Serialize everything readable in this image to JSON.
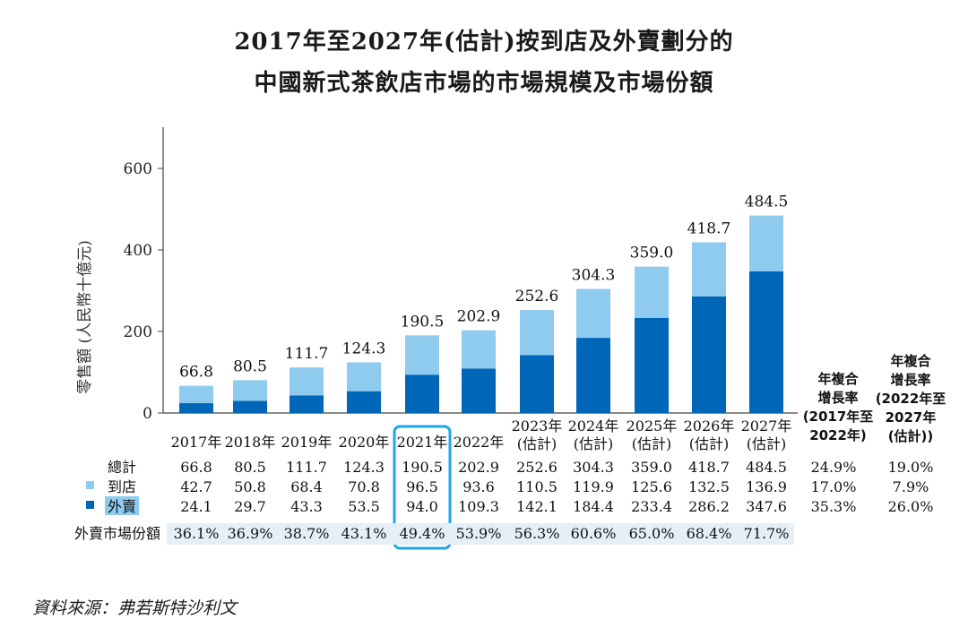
{
  "title_line1": "2017年至2027年(估計)按到店及外賣劃分的",
  "title_line2": "中國新式茶飲店市場的市場規模及市場份額",
  "source": "資料來源：弗若斯特沙利文",
  "colors": {
    "dine_in": "#8ecbef",
    "delivery": "#0067b8",
    "share_bg": "#e4eff7",
    "highlight": "#1aa9e6"
  },
  "chart_data": {
    "type": "bar",
    "stacked": true,
    "ylabel": "零售額 (人民幣十億元)",
    "ylim": [
      0,
      700
    ],
    "yticks": [
      0,
      200,
      400,
      600
    ],
    "categories": [
      [
        "2017年"
      ],
      [
        "2018年"
      ],
      [
        "2019年"
      ],
      [
        "2020年"
      ],
      [
        "2021年"
      ],
      [
        "2022年"
      ],
      [
        "2023年",
        "(估計)"
      ],
      [
        "2024年",
        "(估計)"
      ],
      [
        "2025年",
        "(估計)"
      ],
      [
        "2026年",
        "(估計)"
      ],
      [
        "2027年",
        "(估計)"
      ]
    ],
    "highlight_index": 4,
    "series": [
      {
        "name": "外賣",
        "values": [
          24.1,
          29.7,
          43.3,
          53.5,
          94.0,
          109.3,
          142.1,
          184.4,
          233.4,
          286.2,
          347.6
        ]
      },
      {
        "name": "到店",
        "values": [
          42.7,
          50.8,
          68.4,
          70.8,
          96.5,
          93.6,
          110.5,
          119.9,
          125.6,
          132.5,
          136.9
        ]
      }
    ],
    "totals": [
      66.8,
      80.5,
      111.7,
      124.3,
      190.5,
      202.9,
      252.6,
      304.3,
      359.0,
      418.7,
      484.5
    ],
    "total_labels": [
      "66.8",
      "80.5",
      "111.7",
      "124.3",
      "190.5",
      "202.9",
      "252.6",
      "304.3",
      "359.0",
      "418.7",
      "484.5"
    ]
  },
  "table": {
    "rows": [
      {
        "label": "總計",
        "marker": "none",
        "values": [
          "66.8",
          "80.5",
          "111.7",
          "124.3",
          "190.5",
          "202.9",
          "252.6",
          "304.3",
          "359.0",
          "418.7",
          "484.5"
        ],
        "cagr": [
          "24.9%",
          "19.0%"
        ]
      },
      {
        "label": "到店",
        "marker": "dine_in",
        "values": [
          "42.7",
          "50.8",
          "68.4",
          "70.8",
          "96.5",
          "93.6",
          "110.5",
          "119.9",
          "125.6",
          "132.5",
          "136.9"
        ],
        "cagr": [
          "17.0%",
          "7.9%"
        ]
      },
      {
        "label": "外賣",
        "marker": "delivery",
        "values": [
          "24.1",
          "29.7",
          "43.3",
          "53.5",
          "94.0",
          "109.3",
          "142.1",
          "184.4",
          "233.4",
          "286.2",
          "347.6"
        ],
        "cagr": [
          "35.3%",
          "26.0%"
        ]
      }
    ],
    "share_row": {
      "label": "外賣市場份額",
      "values": [
        "36.1%",
        "36.9%",
        "38.7%",
        "43.1%",
        "49.4%",
        "53.9%",
        "56.3%",
        "60.6%",
        "65.0%",
        "68.4%",
        "71.7%"
      ]
    },
    "cagr_headers": [
      [
        "年複合",
        "增長率",
        "(2017年至",
        "2022年)"
      ],
      [
        "年複合",
        "增長率",
        "(2022年至",
        "2027年",
        "(估計))"
      ]
    ]
  }
}
